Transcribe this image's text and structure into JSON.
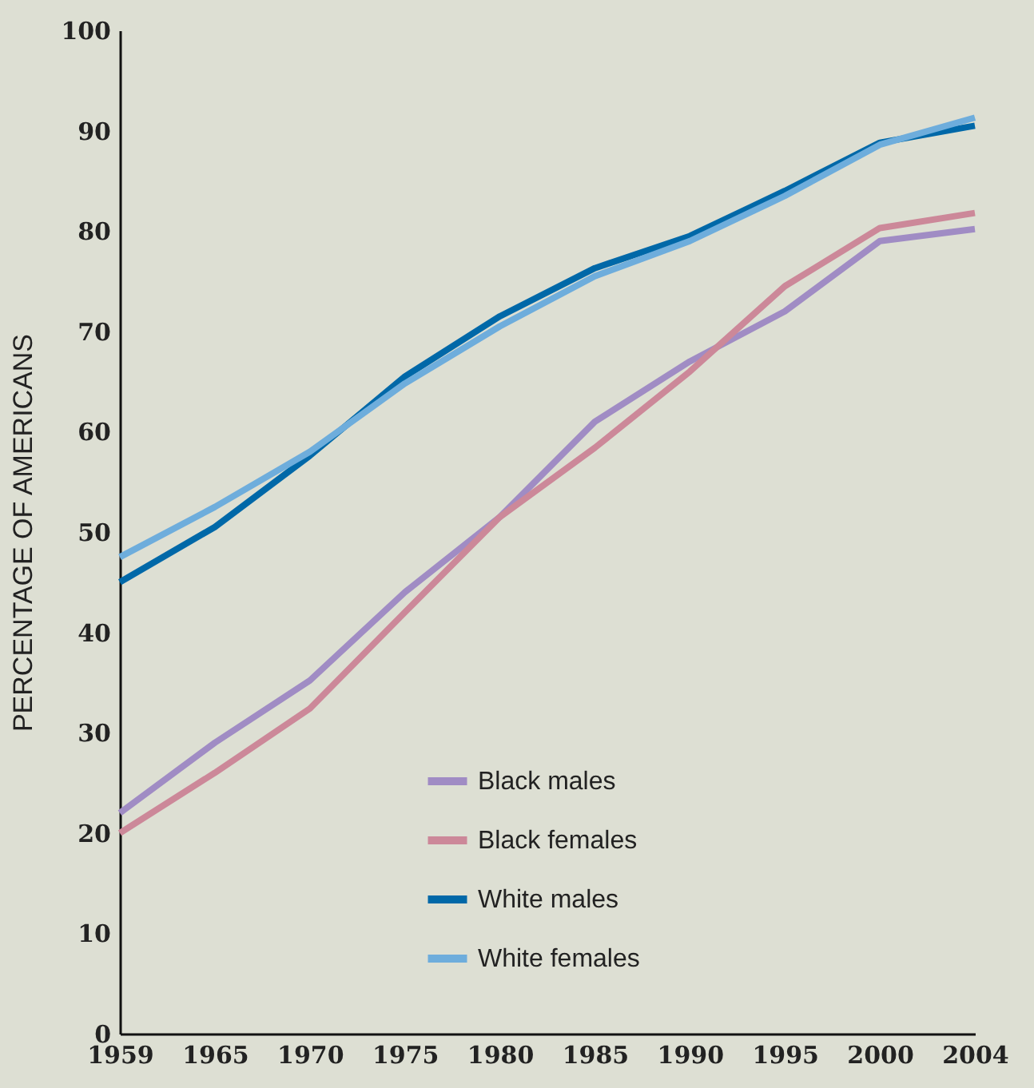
{
  "chart_data": {
    "type": "line",
    "ylabel": "PERCENTAGE OF AMERICANS",
    "categories": [
      "1959",
      "1965",
      "1970",
      "1975",
      "1980",
      "1985",
      "1990",
      "1995",
      "2000",
      "2004"
    ],
    "series": [
      {
        "name": "Black males",
        "color": "#a08cc4",
        "values": [
          22,
          29,
          35.2,
          44,
          51.5,
          61,
          67,
          72,
          79,
          80.2
        ]
      },
      {
        "name": "Black females",
        "color": "#cc8899",
        "values": [
          20,
          26,
          32.4,
          42,
          51.5,
          58.4,
          66,
          74.5,
          80.3,
          81.8
        ]
      },
      {
        "name": "White males",
        "color": "#0068a8",
        "values": [
          45,
          50.5,
          57.6,
          65.5,
          71.5,
          76.3,
          79.5,
          84,
          88.8,
          90.5
        ]
      },
      {
        "name": "White females",
        "color": "#6eaddc",
        "values": [
          47.5,
          52.5,
          58,
          64.8,
          70.5,
          75.5,
          79,
          83.5,
          88.6,
          91.3
        ]
      }
    ],
    "ylim": [
      0,
      100
    ],
    "yticks": [
      0,
      10,
      20,
      30,
      40,
      50,
      60,
      70,
      80,
      90,
      100
    ],
    "grid": false,
    "legend": "bottom right",
    "marker": "none",
    "line_style": "solid"
  }
}
